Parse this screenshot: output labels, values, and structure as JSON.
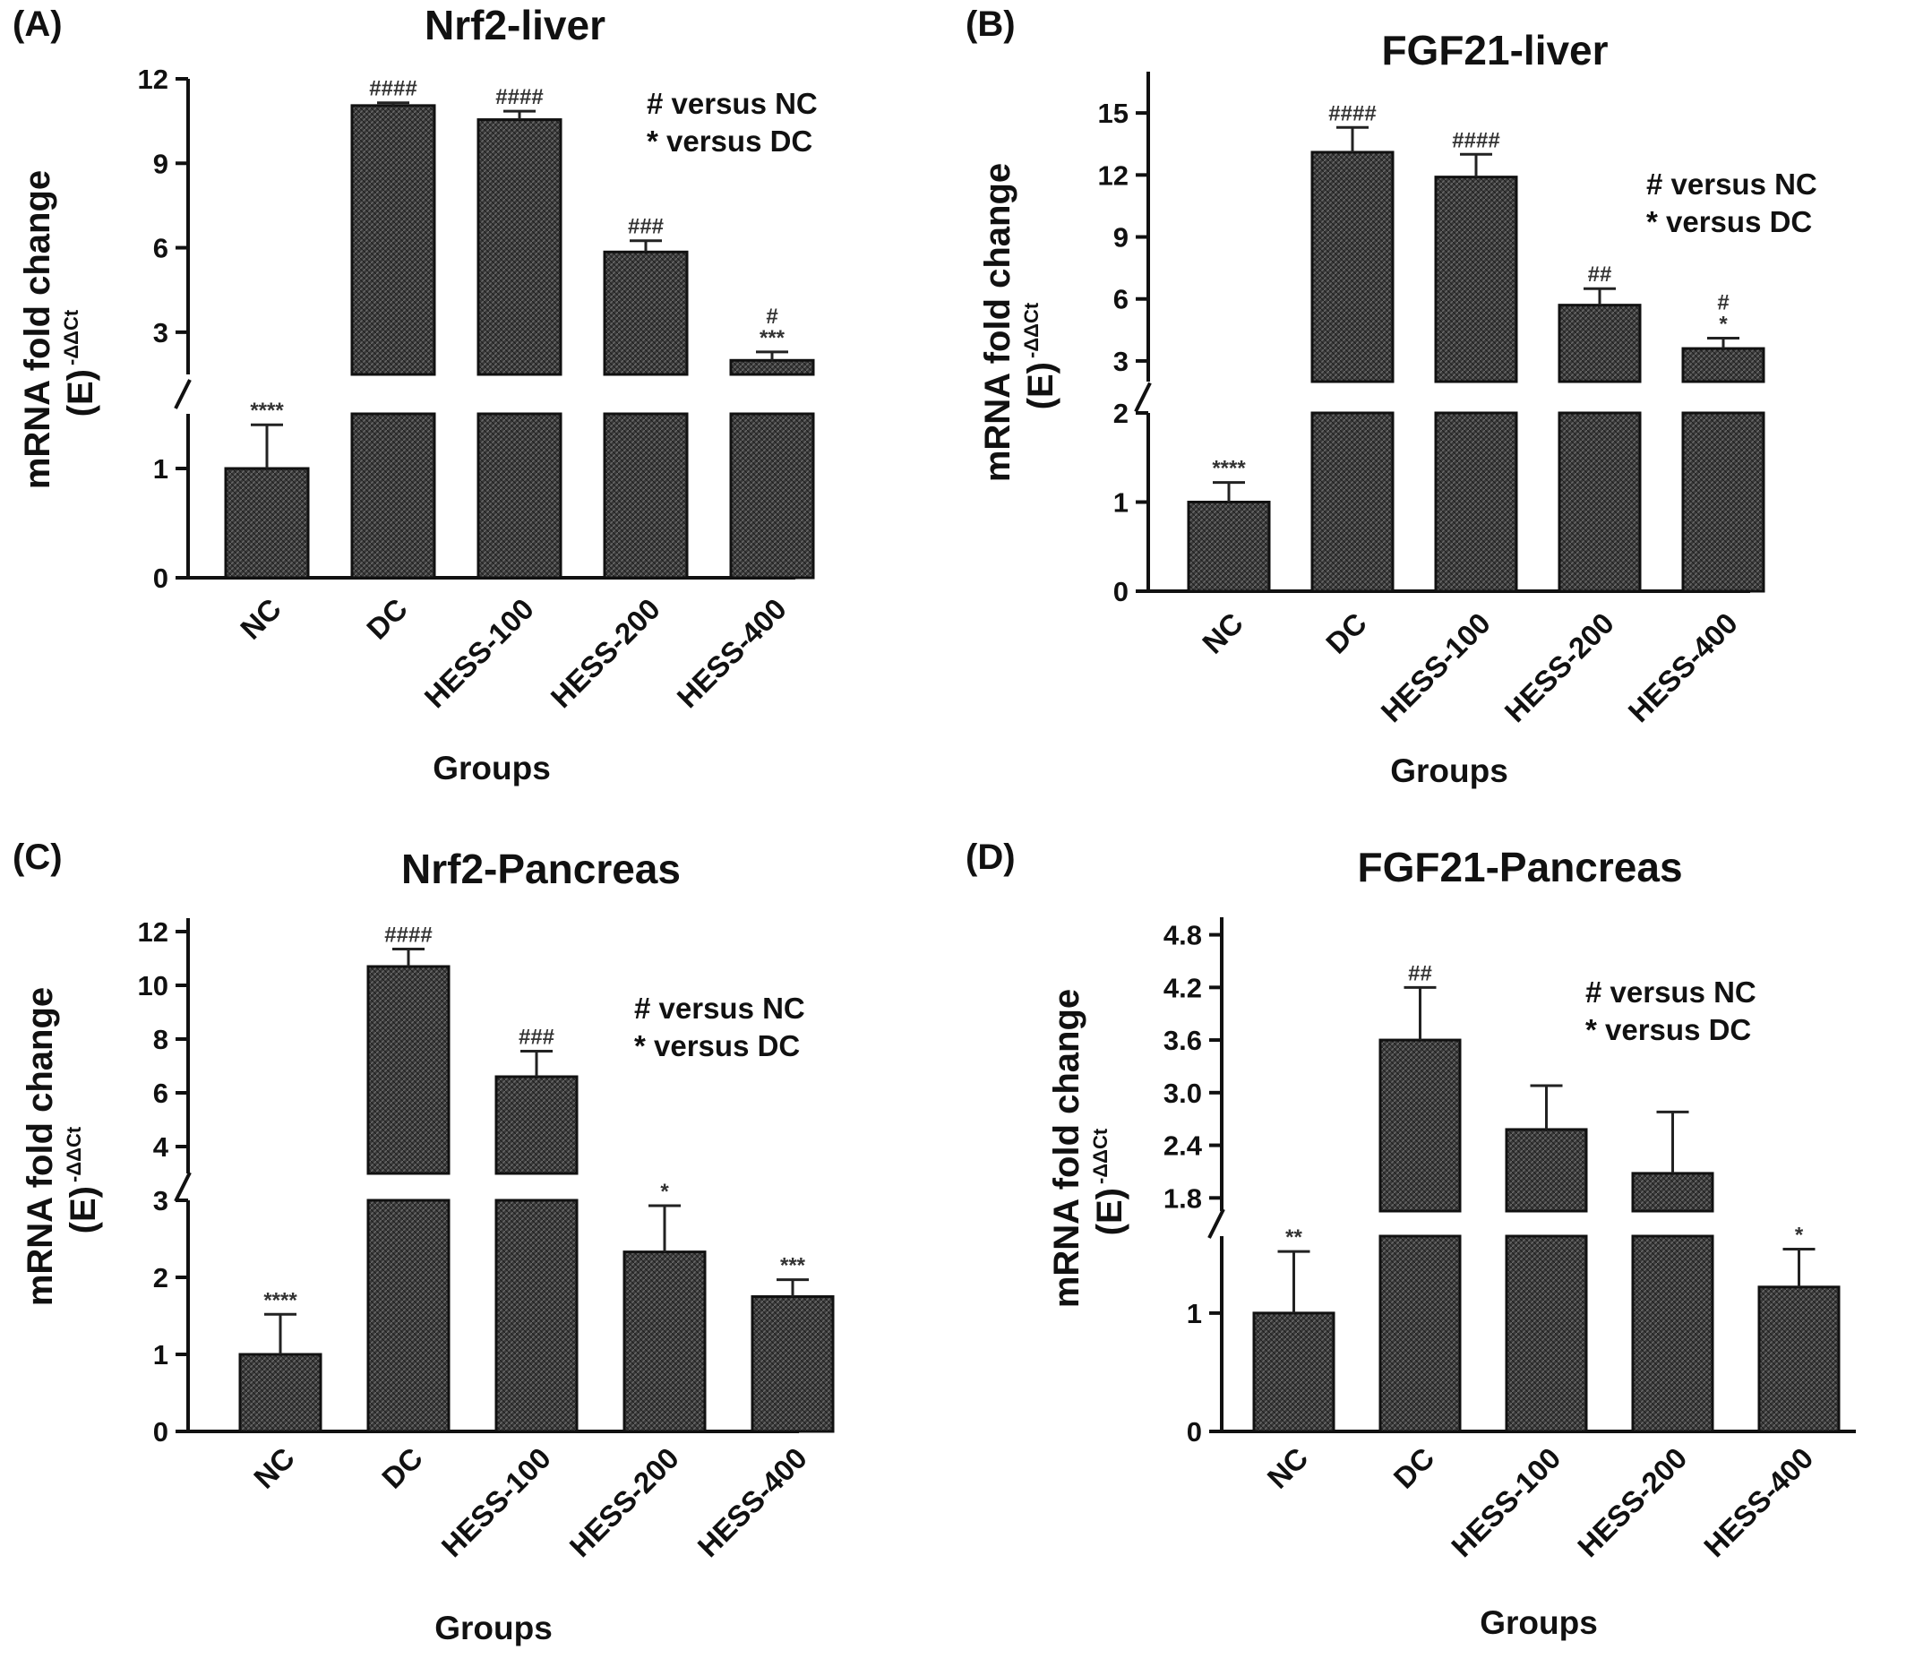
{
  "legend_lines": [
    "# versus NC",
    "* versus DC"
  ],
  "panels": [
    {
      "letter": "(A)",
      "ylabel": "mRNA fold change",
      "ylabel_sub": "(E)",
      "ylabel_sup": "-ΔΔCt",
      "xlabel": "Groups"
    },
    {
      "letter": "(B)",
      "ylabel": "mRNA fold change",
      "ylabel_sub": "(E)",
      "ylabel_sup": "-ΔΔCt",
      "xlabel": "Groups"
    },
    {
      "letter": "(C)",
      "ylabel": "mRNA fold change",
      "ylabel_sub": "(E)",
      "ylabel_sup": "-ΔΔCt",
      "xlabel": "Groups"
    },
    {
      "letter": "(D)",
      "ylabel": "mRNA fold change",
      "ylabel_sub": "(E)",
      "ylabel_sup": "-ΔΔCt",
      "xlabel": "Groups"
    }
  ],
  "chart_data": [
    {
      "type": "bar",
      "title": "Nrf2-liver",
      "xlabel": "Groups",
      "ylabel": "mRNA fold change (E) -ΔΔCt",
      "categories": [
        "NC",
        "DC",
        "HESS-100",
        "HESS-200",
        "HESS-400"
      ],
      "values": [
        1.0,
        11.05,
        10.55,
        5.85,
        2.0
      ],
      "errors": [
        0.4,
        0.1,
        0.3,
        0.4,
        0.3
      ],
      "significance": [
        "****",
        "####",
        "####",
        "###",
        "#\n***"
      ],
      "broken_axis": {
        "lower": [
          0,
          1.5
        ],
        "upper": [
          1.5,
          12
        ]
      },
      "yticks_lower": [
        0,
        1
      ],
      "yticks_upper": [
        3,
        6,
        9,
        12
      ],
      "legend": "top-right",
      "grid": false
    },
    {
      "type": "bar",
      "title": "FGF21-liver",
      "xlabel": "Groups",
      "ylabel": "mRNA fold change (E) -ΔΔCt",
      "categories": [
        "NC",
        "DC",
        "HESS-100",
        "HESS-200",
        "HESS-400"
      ],
      "values": [
        1.0,
        13.1,
        11.9,
        5.7,
        3.6
      ],
      "errors": [
        0.22,
        1.2,
        1.1,
        0.8,
        0.5
      ],
      "significance": [
        "****",
        "####",
        "####",
        "##",
        "#\n*"
      ],
      "broken_axis": {
        "lower": [
          0,
          2
        ],
        "upper": [
          2,
          17
        ]
      },
      "yticks_lower": [
        0,
        1,
        2
      ],
      "yticks_upper": [
        3,
        6,
        9,
        12,
        15
      ],
      "legend": "top-right",
      "grid": false
    },
    {
      "type": "bar",
      "title": "Nrf2-Pancreas",
      "xlabel": "Groups",
      "ylabel": "mRNA fold change (E) -ΔΔCt",
      "categories": [
        "NC",
        "DC",
        "HESS-100",
        "HESS-200",
        "HESS-400"
      ],
      "values": [
        1.0,
        10.7,
        6.6,
        2.33,
        1.75
      ],
      "errors": [
        0.52,
        0.65,
        0.95,
        0.6,
        0.22
      ],
      "significance": [
        "****",
        "####",
        "###",
        "*",
        "***"
      ],
      "broken_axis": {
        "lower": [
          0,
          3
        ],
        "upper": [
          3,
          12.5
        ]
      },
      "yticks_lower": [
        0,
        1,
        2,
        3
      ],
      "yticks_upper": [
        4,
        6,
        8,
        10,
        12
      ],
      "legend": "top-right",
      "grid": false
    },
    {
      "type": "bar",
      "title": "FGF21-Pancreas",
      "xlabel": "Groups",
      "ylabel": "mRNA fold change (E) -ΔΔCt",
      "categories": [
        "NC",
        "DC",
        "HESS-100",
        "HESS-200",
        "HESS-400"
      ],
      "values": [
        1.0,
        3.6,
        2.58,
        2.08,
        1.22
      ],
      "errors": [
        0.52,
        0.6,
        0.5,
        0.7,
        0.32
      ],
      "significance": [
        "**",
        "##",
        "",
        "",
        "*"
      ],
      "broken_axis": {
        "lower": [
          0,
          1.65
        ],
        "upper": [
          1.65,
          5.0
        ]
      },
      "yticks_lower": [
        0,
        1
      ],
      "yticks_upper": [
        1.8,
        2.4,
        3.0,
        3.6,
        4.2,
        4.8
      ],
      "ytick_labels_upper": [
        "1.8",
        "2.4",
        "3.0",
        "3.6",
        "4.2",
        "4.8"
      ],
      "legend": "top-right",
      "grid": false
    }
  ]
}
